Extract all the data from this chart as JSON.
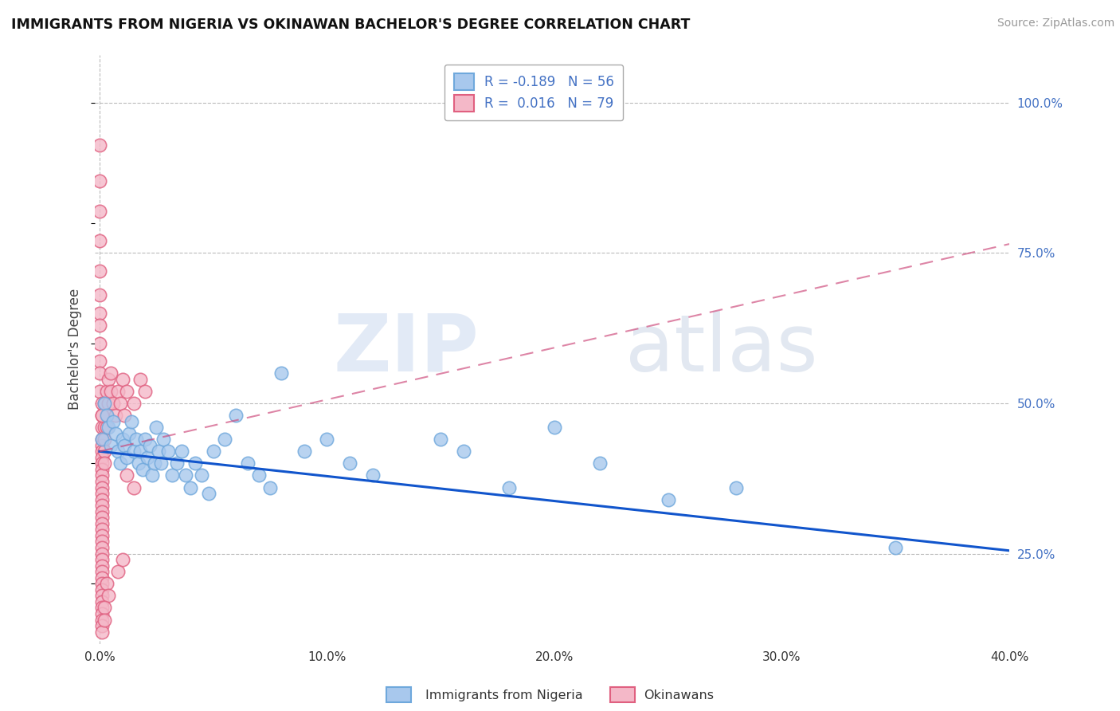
{
  "title": "IMMIGRANTS FROM NIGERIA VS OKINAWAN BACHELOR'S DEGREE CORRELATION CHART",
  "source_text": "Source: ZipAtlas.com",
  "ylabel": "Bachelor's Degree",
  "xlim": [
    -0.002,
    0.4
  ],
  "ylim": [
    0.1,
    1.08
  ],
  "xticks": [
    0.0,
    0.1,
    0.2,
    0.3,
    0.4
  ],
  "xtick_labels": [
    "0.0%",
    "10.0%",
    "20.0%",
    "30.0%",
    "40.0%"
  ],
  "yticks_right": [
    0.25,
    0.5,
    0.75,
    1.0
  ],
  "ytick_labels_right": [
    "25.0%",
    "50.0%",
    "75.0%",
    "100.0%"
  ],
  "blue_R": -0.189,
  "blue_N": 56,
  "pink_R": 0.016,
  "pink_N": 79,
  "blue_color": "#6fa8dc",
  "blue_fill": "#a8c8ed",
  "pink_color": "#e06080",
  "pink_fill": "#f4b8c8",
  "blue_label": "Immigrants from Nigeria",
  "pink_label": "Okinawans",
  "blue_trend_x0": 0.0,
  "blue_trend_y0": 0.42,
  "blue_trend_x1": 0.4,
  "blue_trend_y1": 0.255,
  "pink_trend_x0": 0.0,
  "pink_trend_y0": 0.42,
  "pink_trend_x1": 0.4,
  "pink_trend_y1": 0.765,
  "blue_scatter_x": [
    0.001,
    0.002,
    0.003,
    0.004,
    0.005,
    0.006,
    0.007,
    0.008,
    0.009,
    0.01,
    0.011,
    0.012,
    0.013,
    0.014,
    0.015,
    0.016,
    0.017,
    0.018,
    0.019,
    0.02,
    0.021,
    0.022,
    0.023,
    0.024,
    0.025,
    0.026,
    0.027,
    0.028,
    0.03,
    0.032,
    0.034,
    0.036,
    0.038,
    0.04,
    0.042,
    0.045,
    0.048,
    0.05,
    0.055,
    0.06,
    0.065,
    0.07,
    0.075,
    0.08,
    0.09,
    0.1,
    0.11,
    0.12,
    0.15,
    0.16,
    0.18,
    0.2,
    0.22,
    0.25,
    0.28,
    0.35
  ],
  "blue_scatter_y": [
    0.44,
    0.5,
    0.48,
    0.46,
    0.43,
    0.47,
    0.45,
    0.42,
    0.4,
    0.44,
    0.43,
    0.41,
    0.45,
    0.47,
    0.42,
    0.44,
    0.4,
    0.42,
    0.39,
    0.44,
    0.41,
    0.43,
    0.38,
    0.4,
    0.46,
    0.42,
    0.4,
    0.44,
    0.42,
    0.38,
    0.4,
    0.42,
    0.38,
    0.36,
    0.4,
    0.38,
    0.35,
    0.42,
    0.44,
    0.48,
    0.4,
    0.38,
    0.36,
    0.55,
    0.42,
    0.44,
    0.4,
    0.38,
    0.44,
    0.42,
    0.36,
    0.46,
    0.4,
    0.34,
    0.36,
    0.26
  ],
  "pink_scatter_x": [
    0.0,
    0.0,
    0.0,
    0.0,
    0.0,
    0.0,
    0.0,
    0.0,
    0.0,
    0.0,
    0.0,
    0.0,
    0.001,
    0.001,
    0.001,
    0.001,
    0.001,
    0.001,
    0.001,
    0.001,
    0.001,
    0.001,
    0.001,
    0.001,
    0.001,
    0.001,
    0.001,
    0.001,
    0.001,
    0.001,
    0.001,
    0.001,
    0.001,
    0.001,
    0.001,
    0.001,
    0.001,
    0.001,
    0.001,
    0.001,
    0.001,
    0.001,
    0.001,
    0.001,
    0.001,
    0.001,
    0.001,
    0.001,
    0.002,
    0.002,
    0.002,
    0.002,
    0.002,
    0.003,
    0.003,
    0.003,
    0.004,
    0.004,
    0.005,
    0.005,
    0.006,
    0.007,
    0.008,
    0.009,
    0.01,
    0.011,
    0.012,
    0.015,
    0.018,
    0.02,
    0.012,
    0.015,
    0.008,
    0.01,
    0.003,
    0.004,
    0.002,
    0.002,
    0.001
  ],
  "pink_scatter_y": [
    0.93,
    0.87,
    0.82,
    0.77,
    0.72,
    0.68,
    0.65,
    0.63,
    0.6,
    0.57,
    0.55,
    0.52,
    0.5,
    0.48,
    0.46,
    0.44,
    0.43,
    0.42,
    0.41,
    0.4,
    0.39,
    0.38,
    0.37,
    0.36,
    0.35,
    0.34,
    0.33,
    0.32,
    0.31,
    0.3,
    0.29,
    0.28,
    0.27,
    0.26,
    0.25,
    0.24,
    0.23,
    0.22,
    0.21,
    0.2,
    0.19,
    0.18,
    0.17,
    0.16,
    0.15,
    0.14,
    0.13,
    0.12,
    0.5,
    0.46,
    0.44,
    0.42,
    0.4,
    0.52,
    0.48,
    0.46,
    0.54,
    0.5,
    0.55,
    0.52,
    0.5,
    0.48,
    0.52,
    0.5,
    0.54,
    0.48,
    0.52,
    0.5,
    0.54,
    0.52,
    0.38,
    0.36,
    0.22,
    0.24,
    0.2,
    0.18,
    0.16,
    0.14,
    0.48
  ]
}
